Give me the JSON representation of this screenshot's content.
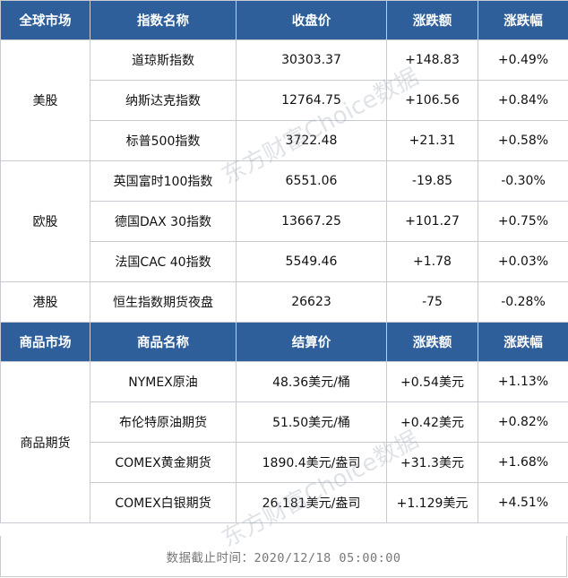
{
  "index_header": [
    "全球市场",
    "指数名称",
    "收盘价",
    "涨跌额",
    "涨跌幅"
  ],
  "groups": [
    {
      "label": "美股",
      "rows": [
        {
          "name": "道琼斯指数",
          "price": "30303.37",
          "change": "+148.83",
          "pct": "+0.49%"
        },
        {
          "name": "纳斯达克指数",
          "price": "12764.75",
          "change": "+106.56",
          "pct": "+0.84%"
        },
        {
          "name": "标普500指数",
          "price": "3722.48",
          "change": "+21.31",
          "pct": "+0.58%"
        }
      ]
    },
    {
      "label": "欧股",
      "rows": [
        {
          "name": "英国富时100指数",
          "price": "6551.06",
          "change": "-19.85",
          "pct": "-0.30%"
        },
        {
          "name": "德国DAX 30指数",
          "price": "13667.25",
          "change": "+101.27",
          "pct": "+0.75%"
        },
        {
          "name": "法国CAC 40指数",
          "price": "5549.46",
          "change": "+1.78",
          "pct": "+0.03%"
        }
      ]
    },
    {
      "label": "港股",
      "rows": [
        {
          "name": "恒生指数期货夜盘",
          "price": "26623",
          "change": "-75",
          "pct": "-0.28%"
        }
      ]
    }
  ],
  "commodity_header": [
    "商品市场",
    "商品名称",
    "结算价",
    "涨跌额",
    "涨跌幅"
  ],
  "commodity": {
    "label": "商品期货",
    "rows": [
      {
        "name": "NYMEX原油",
        "price": "48.36美元/桶",
        "change": "+0.54美元",
        "pct": "+1.13%"
      },
      {
        "name": "布伦特原油期货",
        "price": "51.50美元/桶",
        "change": "+0.42美元",
        "pct": "+0.82%"
      },
      {
        "name": "COMEX黄金期货",
        "price": "1890.4美元/盎司",
        "change": "+31.3美元",
        "pct": "+1.68%"
      },
      {
        "name": "COMEX白银期货",
        "price": "26.181美元/盎司",
        "change": "+1.129美元",
        "pct": "+4.51%"
      }
    ]
  },
  "footer": "数据截止时间：2020/12/18 05:00:00",
  "watermark": "东方财富Choice数据",
  "colors": {
    "header_bg": "#2e5f9a",
    "header_text": "#ffffff",
    "border": "#c8ccd2"
  }
}
